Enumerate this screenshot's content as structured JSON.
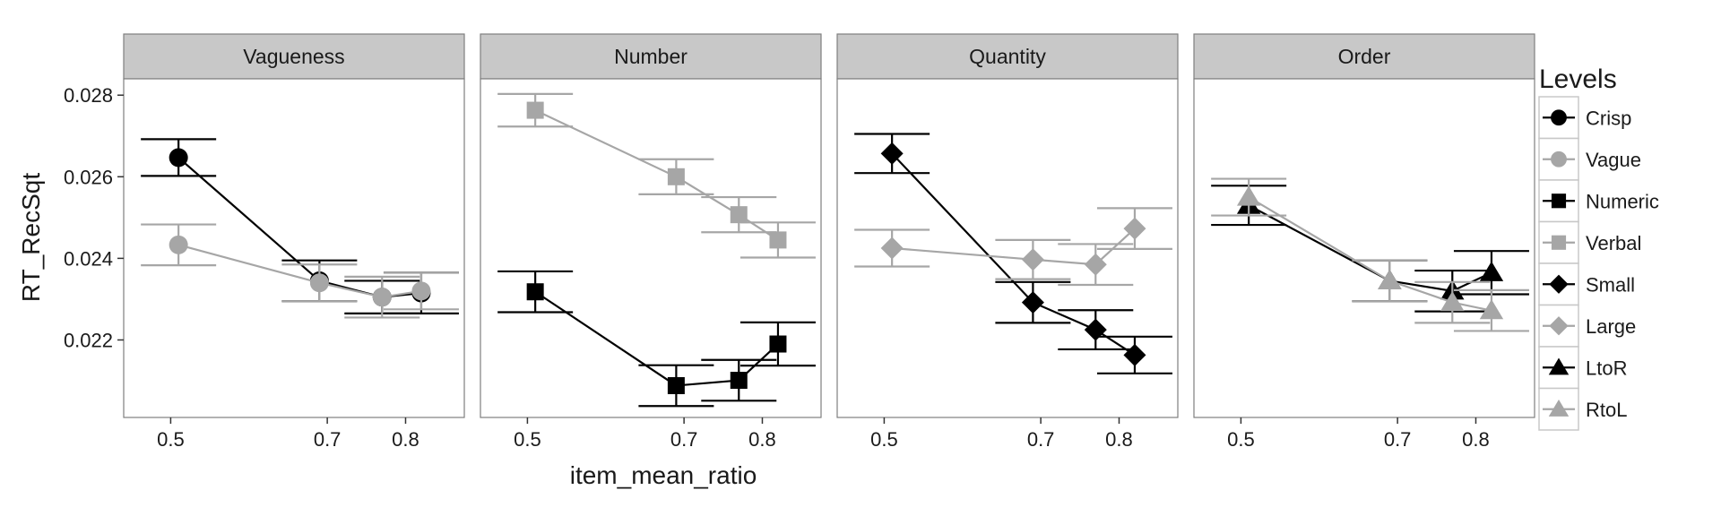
{
  "chart_data": {
    "type": "line",
    "xlabel": "item_mean_ratio",
    "ylabel": "RT_RecSqt",
    "xlim": [
      0.44,
      0.875
    ],
    "ylim": [
      0.0201,
      0.0284
    ],
    "x_ticks": [
      {
        "value": 0.5,
        "label": "0.5"
      },
      {
        "value": 0.7,
        "label": "0.7"
      },
      {
        "value": 0.8,
        "label": "0.8"
      }
    ],
    "y_ticks": [
      {
        "value": 0.022,
        "label": "0.022"
      },
      {
        "value": 0.024,
        "label": "0.024"
      },
      {
        "value": 0.026,
        "label": "0.026"
      },
      {
        "value": 0.028,
        "label": "0.028"
      }
    ],
    "legend": {
      "title": "Levels",
      "position": "right",
      "entries": [
        {
          "label": "Crisp",
          "color": "#000000",
          "shape": "circle"
        },
        {
          "label": "Vague",
          "color": "#a6a6a6",
          "shape": "circle"
        },
        {
          "label": "Numeric",
          "color": "#000000",
          "shape": "square"
        },
        {
          "label": "Verbal",
          "color": "#a6a6a6",
          "shape": "square"
        },
        {
          "label": "Small",
          "color": "#000000",
          "shape": "diamond"
        },
        {
          "label": "Large",
          "color": "#a6a6a6",
          "shape": "diamond"
        },
        {
          "label": "LtoR",
          "color": "#000000",
          "shape": "triangle"
        },
        {
          "label": "RtoL",
          "color": "#a6a6a6",
          "shape": "triangle"
        }
      ]
    },
    "panels": [
      {
        "title": "Vagueness",
        "series": [
          {
            "name": "Crisp",
            "color": "#000000",
            "shape": "circle",
            "x": [
              0.51,
              0.69,
              0.77,
              0.82
            ],
            "y": [
              0.02647,
              0.02345,
              0.02305,
              0.02315
            ],
            "err": [
              0.00045,
              0.0005,
              0.0004,
              0.0005
            ]
          },
          {
            "name": "Vague",
            "color": "#a6a6a6",
            "shape": "circle",
            "x": [
              0.51,
              0.69,
              0.77,
              0.82
            ],
            "y": [
              0.02433,
              0.0234,
              0.02305,
              0.0232
            ],
            "err": [
              0.0005,
              0.00045,
              0.0005,
              0.00045
            ]
          }
        ]
      },
      {
        "title": "Number",
        "series": [
          {
            "name": "Numeric",
            "color": "#000000",
            "shape": "square",
            "x": [
              0.51,
              0.69,
              0.77,
              0.82
            ],
            "y": [
              0.02318,
              0.02088,
              0.02101,
              0.0219
            ],
            "err": [
              0.0005,
              0.0005,
              0.0005,
              0.00053
            ]
          },
          {
            "name": "Verbal",
            "color": "#a6a6a6",
            "shape": "square",
            "x": [
              0.51,
              0.69,
              0.77,
              0.82
            ],
            "y": [
              0.02763,
              0.026,
              0.02507,
              0.02445
            ],
            "err": [
              0.0004,
              0.00043,
              0.00043,
              0.00043
            ]
          }
        ]
      },
      {
        "title": "Quantity",
        "series": [
          {
            "name": "Small",
            "color": "#000000",
            "shape": "diamond",
            "x": [
              0.51,
              0.69,
              0.77,
              0.82
            ],
            "y": [
              0.02657,
              0.02292,
              0.02225,
              0.02163
            ],
            "err": [
              0.00048,
              0.0005,
              0.00048,
              0.00045
            ]
          },
          {
            "name": "Large",
            "color": "#a6a6a6",
            "shape": "diamond",
            "x": [
              0.51,
              0.69,
              0.77,
              0.82
            ],
            "y": [
              0.02425,
              0.02397,
              0.02385,
              0.02473
            ],
            "err": [
              0.00045,
              0.00048,
              0.0005,
              0.0005
            ]
          }
        ]
      },
      {
        "title": "Order",
        "series": [
          {
            "name": "LtoR",
            "color": "#000000",
            "shape": "triangle",
            "x": [
              0.51,
              0.69,
              0.77,
              0.82
            ],
            "y": [
              0.0253,
              0.02345,
              0.0232,
              0.02365
            ],
            "err": [
              0.00048,
              0.0005,
              0.0005,
              0.00053
            ]
          },
          {
            "name": "RtoL",
            "color": "#a6a6a6",
            "shape": "triangle",
            "x": [
              0.51,
              0.69,
              0.77,
              0.82
            ],
            "y": [
              0.0255,
              0.02345,
              0.02292,
              0.02272
            ],
            "err": [
              0.00045,
              0.0005,
              0.0005,
              0.0005
            ]
          }
        ]
      }
    ]
  }
}
